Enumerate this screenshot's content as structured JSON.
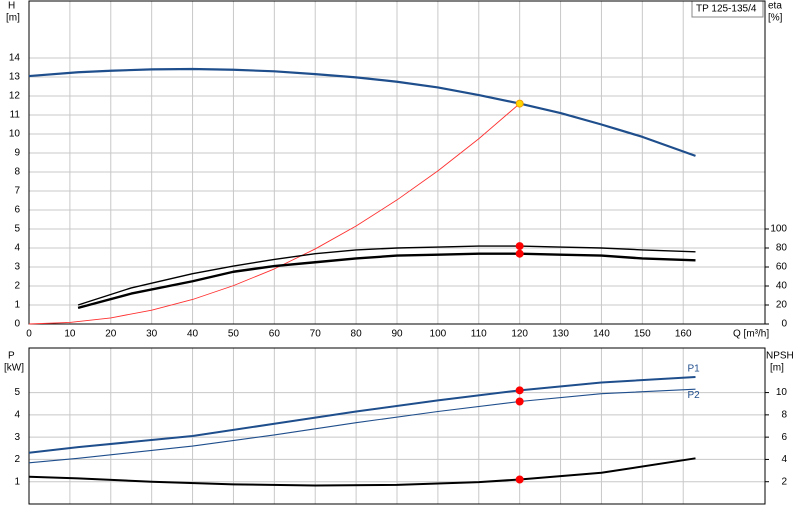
{
  "chart_data": [
    {
      "type": "line",
      "title": "TP 125-135/4",
      "xlabel": "Q [m³/h]",
      "ylabel": "H",
      "yunit": "[m]",
      "y2label": "eta",
      "y2unit": "[%]",
      "xlim": [
        0,
        180
      ],
      "xticks": [
        0,
        10,
        20,
        30,
        40,
        50,
        60,
        70,
        80,
        90,
        100,
        110,
        120,
        130,
        140,
        150,
        160
      ],
      "ylim": [
        0,
        17
      ],
      "yticks": [
        0,
        1,
        2,
        3,
        4,
        5,
        6,
        7,
        8,
        9,
        10,
        11,
        12,
        13,
        14
      ],
      "y2lim": [
        0,
        340
      ],
      "y2ticks": [
        0,
        20,
        40,
        60,
        80,
        100
      ],
      "grid": true,
      "series": [
        {
          "color": "#1f4e8c",
          "width": 2.2,
          "x": [
            0,
            12,
            20,
            30,
            40,
            50,
            60,
            70,
            80,
            90,
            100,
            110,
            120,
            130,
            140,
            150,
            163
          ],
          "values": [
            13.05,
            13.25,
            13.33,
            13.4,
            13.42,
            13.38,
            13.3,
            13.15,
            12.98,
            12.75,
            12.45,
            12.05,
            11.6,
            11.1,
            10.5,
            9.85,
            8.85
          ]
        },
        {
          "color": "#ff3030",
          "width": 0.9,
          "x": [
            0,
            10,
            20,
            30,
            40,
            50,
            60,
            70,
            80,
            90,
            100,
            110,
            120
          ],
          "values": [
            0,
            0.08,
            0.32,
            0.73,
            1.29,
            2.02,
            2.9,
            3.95,
            5.16,
            6.53,
            8.06,
            9.75,
            11.6
          ]
        },
        {
          "color": "#000000",
          "width": 1.4,
          "axis": "y2",
          "x": [
            12,
            25,
            40,
            50,
            60,
            70,
            80,
            90,
            100,
            110,
            120,
            130,
            140,
            150,
            163
          ],
          "values": [
            20,
            38,
            53,
            61,
            68,
            74,
            78,
            80,
            81,
            82,
            82,
            81,
            80,
            78,
            76
          ]
        },
        {
          "color": "#000000",
          "width": 2.4,
          "axis": "y2",
          "x": [
            12,
            25,
            40,
            50,
            60,
            70,
            80,
            90,
            100,
            110,
            120,
            130,
            140,
            150,
            163
          ],
          "values": [
            17,
            32,
            45,
            55,
            61,
            65,
            69,
            72,
            73,
            74,
            74,
            73,
            72,
            69,
            67
          ]
        },
        {
          "type": "scatter",
          "color": "#ff0000",
          "axis": "y2",
          "x": [
            120,
            120
          ],
          "values": [
            82,
            74
          ]
        },
        {
          "type": "scatter",
          "color": "#ffd700",
          "x": [
            120
          ],
          "values": [
            11.6
          ]
        }
      ]
    },
    {
      "type": "line",
      "ylabel": "P",
      "yunit": "[kW]",
      "y2label": "NPSH",
      "y2unit": "[m]",
      "xlim": [
        0,
        180
      ],
      "xticks": [
        0,
        10,
        20,
        30,
        40,
        50,
        60,
        70,
        80,
        90,
        100,
        110,
        120,
        130,
        140,
        150,
        160
      ],
      "ylim": [
        0,
        7
      ],
      "yticks": [
        1,
        2,
        3,
        4,
        5
      ],
      "y2lim": [
        0,
        14
      ],
      "y2ticks": [
        2,
        4,
        6,
        8,
        10
      ],
      "grid": true,
      "series": [
        {
          "label": "P1",
          "color": "#1f4e8c",
          "width": 2,
          "x": [
            0,
            12,
            40,
            60,
            80,
            100,
            120,
            140,
            163
          ],
          "values": [
            2.3,
            2.55,
            3.05,
            3.6,
            4.15,
            4.65,
            5.1,
            5.45,
            5.7
          ]
        },
        {
          "label": "P2",
          "color": "#1f4e8c",
          "width": 1.1,
          "x": [
            0,
            12,
            40,
            60,
            80,
            100,
            120,
            140,
            163
          ],
          "values": [
            1.85,
            2.05,
            2.6,
            3.1,
            3.65,
            4.15,
            4.6,
            4.95,
            5.15
          ]
        },
        {
          "color": "#000000",
          "width": 2,
          "axis": "y2",
          "x": [
            0,
            12,
            30,
            50,
            70,
            90,
            110,
            120,
            140,
            163
          ],
          "values": [
            2.45,
            2.3,
            2.0,
            1.76,
            1.66,
            1.72,
            1.96,
            2.2,
            2.8,
            4.1
          ]
        },
        {
          "type": "scatter",
          "color": "#ff0000",
          "x": [
            120,
            120
          ],
          "values": [
            5.1,
            4.6
          ]
        },
        {
          "type": "scatter",
          "color": "#ff0000",
          "axis": "y2",
          "x": [
            120
          ],
          "values": [
            2.2
          ]
        }
      ]
    }
  ]
}
